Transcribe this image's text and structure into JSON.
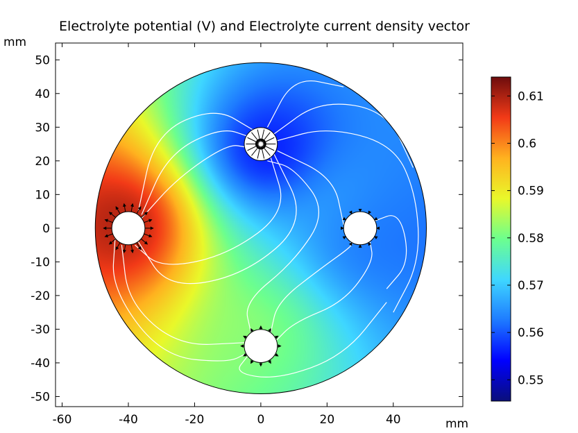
{
  "chart_data": {
    "type": "heatmap",
    "title": "Electrolyte potential (V) and Electrolyte current density vector",
    "x_unit": "mm",
    "y_unit": "mm",
    "xlim": [
      -62,
      61
    ],
    "ylim": [
      -53,
      55
    ],
    "x_ticks": [
      "-60",
      "-40",
      "-20",
      "0",
      "20",
      "40"
    ],
    "x_tick_values": [
      -60,
      -40,
      -20,
      0,
      20,
      40
    ],
    "y_ticks": [
      "50",
      "40",
      "30",
      "20",
      "10",
      "0",
      "-10",
      "-20",
      "-30",
      "-40",
      "-50"
    ],
    "y_tick_values": [
      50,
      40,
      30,
      20,
      10,
      0,
      -10,
      -20,
      -30,
      -40,
      -50
    ],
    "colorbar": {
      "min": 0.5455,
      "max": 0.614,
      "ticks": [
        "0.61",
        "0.6",
        "0.59",
        "0.58",
        "0.57",
        "0.56",
        "0.55"
      ],
      "tick_values": [
        0.61,
        0.6,
        0.59,
        0.58,
        0.57,
        0.56,
        0.55
      ],
      "colormap": [
        "#0a0f7a",
        "#0000ff",
        "#1e7bff",
        "#3fd7ff",
        "#6cff8e",
        "#e9f82a",
        "#ffb21f",
        "#f23a17",
        "#6e0d0d"
      ]
    },
    "domain_circle": {
      "cx": 0,
      "cy": 0,
      "r": 50
    },
    "electrodes": [
      {
        "name": "left",
        "cx": -40,
        "cy": 0,
        "r": 5,
        "potential": 0.614
      },
      {
        "name": "top",
        "cx": 0,
        "cy": 25,
        "r": 5,
        "potential": 0.5455
      },
      {
        "name": "right",
        "cx": 30,
        "cy": 0,
        "r": 5,
        "potential": 0.562
      },
      {
        "name": "bottom",
        "cx": 0,
        "cy": -35,
        "r": 5,
        "potential": 0.585
      }
    ]
  }
}
